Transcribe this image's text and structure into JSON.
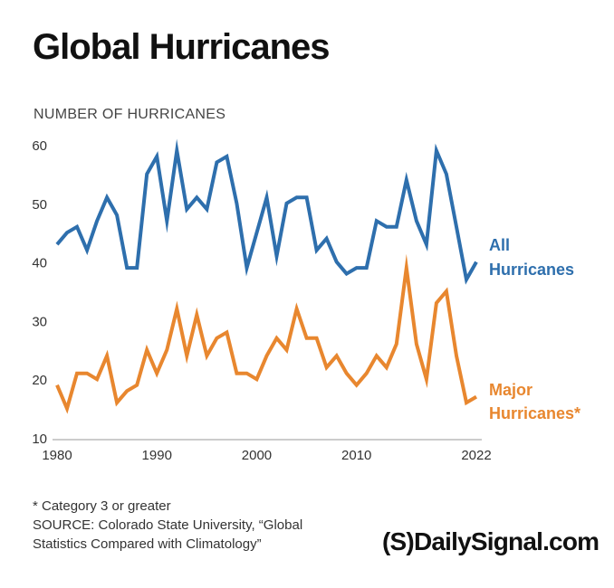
{
  "title": "Global Hurricanes",
  "colors": {
    "all": "#2e6fad",
    "major": "#e8872f",
    "axis": "#bbbbbb"
  },
  "chart_data": {
    "type": "line",
    "title": "Global Hurricanes",
    "ylabel": "NUMBER OF HURRICANES",
    "xlabel": "",
    "ylim": [
      10,
      60
    ],
    "yticks": [
      10,
      20,
      30,
      40,
      50,
      60
    ],
    "xlim": [
      1980,
      2022
    ],
    "xticks": [
      1980,
      1990,
      2000,
      2010,
      2022
    ],
    "grid": false,
    "x": [
      1980,
      1981,
      1982,
      1983,
      1984,
      1985,
      1986,
      1987,
      1988,
      1989,
      1990,
      1991,
      1992,
      1993,
      1994,
      1995,
      1996,
      1997,
      1998,
      1999,
      2000,
      2001,
      2002,
      2003,
      2004,
      2005,
      2006,
      2007,
      2008,
      2009,
      2010,
      2011,
      2012,
      2013,
      2014,
      2015,
      2016,
      2017,
      2018,
      2019,
      2020,
      2021,
      2022
    ],
    "series": [
      {
        "name": "All Hurricanes",
        "color": "#2e6fad",
        "values": [
          43,
          45,
          46,
          42,
          47,
          51,
          48,
          39,
          39,
          55,
          58,
          47,
          59,
          49,
          51,
          49,
          57,
          58,
          50,
          39,
          45,
          51,
          41,
          50,
          51,
          51,
          42,
          44,
          40,
          38,
          39,
          39,
          47,
          46,
          46,
          54,
          47,
          43,
          59,
          55,
          46,
          37,
          40
        ]
      },
      {
        "name": "Major Hurricanes*",
        "color": "#e8872f",
        "values": [
          19,
          15,
          21,
          21,
          20,
          24,
          16,
          18,
          19,
          25,
          21,
          25,
          32,
          24,
          31,
          24,
          27,
          28,
          21,
          21,
          20,
          24,
          27,
          25,
          32,
          27,
          27,
          22,
          24,
          21,
          19,
          21,
          24,
          22,
          26,
          39,
          26,
          20,
          33,
          35,
          24,
          16,
          17
        ]
      }
    ]
  },
  "footnote": {
    "line1": "* Category 3 or greater",
    "line2": "SOURCE: Colorado State University, “Global",
    "line3": "Statistics Compared with Climatology”"
  },
  "series_labels": {
    "all_line1": "All",
    "all_line2": "Hurricanes",
    "major_line1": "Major",
    "major_line2": "Hurricanes*"
  },
  "logo": {
    "mark": "(S)",
    "text": "DailySignal.com"
  }
}
